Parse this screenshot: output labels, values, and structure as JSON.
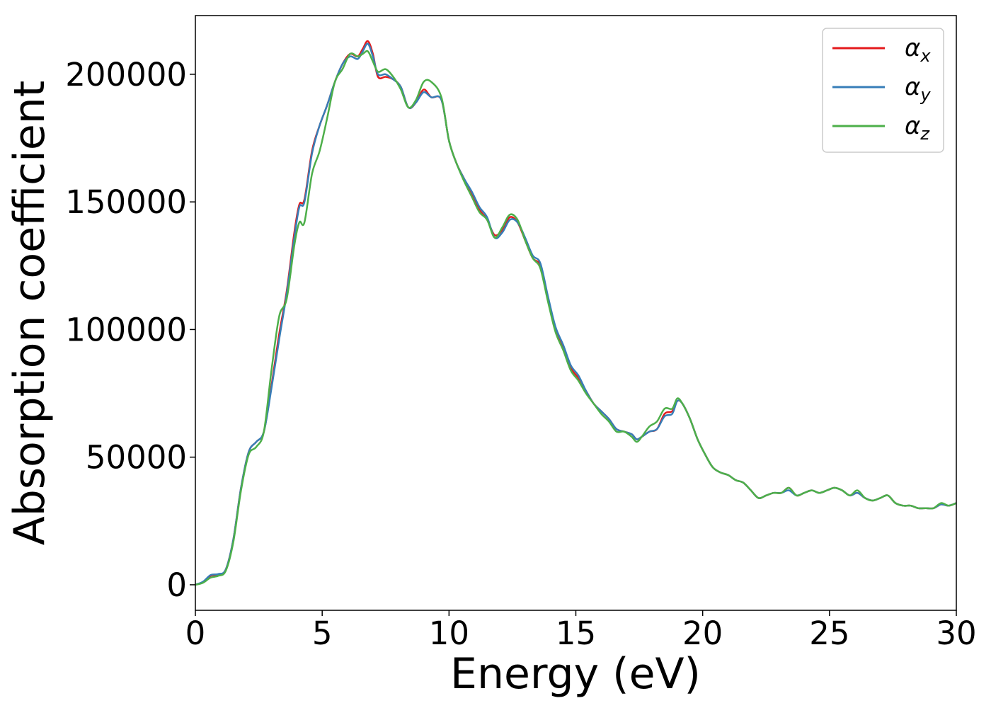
{
  "chart_data": {
    "type": "line",
    "xlabel": "Energy (eV)",
    "ylabel": "Absorption coefficient",
    "xlim": [
      0,
      30
    ],
    "ylim": [
      -10000,
      223000
    ],
    "xticks": [
      0,
      5,
      10,
      15,
      20,
      25,
      30
    ],
    "xtick_labels": [
      "0",
      "5",
      "10",
      "15",
      "20",
      "25",
      "30"
    ],
    "yticks": [
      0,
      50000,
      100000,
      150000,
      200000
    ],
    "ytick_labels": [
      "0",
      "50000",
      "100000",
      "150000",
      "200000"
    ],
    "grid": false,
    "legend_position": "top-right",
    "series": [
      {
        "name": "αx",
        "legend_symbol": "α",
        "legend_sub": "x",
        "color": "#e41a1c",
        "x": [
          0,
          0.3,
          0.6,
          0.9,
          1.2,
          1.5,
          1.8,
          2.1,
          2.4,
          2.7,
          3.0,
          3.3,
          3.6,
          3.9,
          4.1,
          4.3,
          4.6,
          4.9,
          5.2,
          5.5,
          5.8,
          6.1,
          6.4,
          6.6,
          6.8,
          7.0,
          7.2,
          7.5,
          7.8,
          8.1,
          8.4,
          8.7,
          9.0,
          9.3,
          9.7,
          10.0,
          10.3,
          10.6,
          10.9,
          11.2,
          11.5,
          11.8,
          12.1,
          12.4,
          12.7,
          13.0,
          13.3,
          13.6,
          13.9,
          14.2,
          14.5,
          14.8,
          15.1,
          15.4,
          15.7,
          16.0,
          16.3,
          16.6,
          16.9,
          17.2,
          17.4,
          17.6,
          17.9,
          18.2,
          18.5,
          18.8,
          19.0,
          19.2,
          19.5,
          19.8,
          20.1,
          20.4,
          20.7,
          21.0,
          21.3,
          21.6,
          21.9,
          22.2,
          22.5,
          22.8,
          23.1,
          23.4,
          23.7,
          24.0,
          24.3,
          24.6,
          24.9,
          25.2,
          25.5,
          25.8,
          26.1,
          26.4,
          26.7,
          27.0,
          27.3,
          27.6,
          27.9,
          28.2,
          28.5,
          28.8,
          29.1,
          29.4,
          29.7,
          30.0
        ],
        "y": [
          0,
          1000,
          3500,
          4000,
          6000,
          18000,
          38000,
          52000,
          56000,
          60000,
          78000,
          98000,
          115000,
          138000,
          149000,
          151000,
          170000,
          180000,
          188000,
          197000,
          204000,
          208000,
          207000,
          210000,
          213000,
          208000,
          199000,
          199000,
          198000,
          195000,
          187000,
          189000,
          194000,
          191000,
          190000,
          174000,
          165000,
          159000,
          153000,
          147000,
          143000,
          137000,
          139000,
          144000,
          142000,
          135000,
          128000,
          125000,
          112000,
          100000,
          93000,
          85000,
          81000,
          76000,
          71000,
          68000,
          65000,
          61000,
          60000,
          59000,
          57000,
          58000,
          60000,
          61000,
          67000,
          68000,
          72000,
          71000,
          65000,
          57000,
          51000,
          46000,
          44000,
          43000,
          41000,
          40000,
          37000,
          34000,
          35000,
          36000,
          36000,
          38000,
          35000,
          36000,
          37000,
          36000,
          37000,
          38000,
          37000,
          35000,
          36000,
          34000,
          33000,
          34000,
          35000,
          32000,
          31000,
          31000,
          30000,
          30000,
          30000,
          31500,
          31000,
          32000
        ]
      },
      {
        "name": "αy",
        "legend_symbol": "α",
        "legend_sub": "y",
        "color": "#377eb8",
        "x": [
          0,
          0.3,
          0.6,
          0.9,
          1.2,
          1.5,
          1.8,
          2.1,
          2.4,
          2.7,
          3.0,
          3.3,
          3.6,
          3.9,
          4.1,
          4.3,
          4.6,
          4.9,
          5.2,
          5.5,
          5.8,
          6.1,
          6.4,
          6.6,
          6.8,
          7.0,
          7.2,
          7.5,
          7.8,
          8.1,
          8.4,
          8.7,
          9.0,
          9.3,
          9.7,
          10.0,
          10.3,
          10.6,
          10.9,
          11.2,
          11.5,
          11.8,
          12.1,
          12.4,
          12.7,
          13.0,
          13.3,
          13.6,
          13.9,
          14.2,
          14.5,
          14.8,
          15.1,
          15.4,
          15.7,
          16.0,
          16.3,
          16.6,
          16.9,
          17.2,
          17.4,
          17.6,
          17.9,
          18.2,
          18.5,
          18.8,
          19.0,
          19.2,
          19.5,
          19.8,
          20.1,
          20.4,
          20.7,
          21.0,
          21.3,
          21.6,
          21.9,
          22.2,
          22.5,
          22.8,
          23.1,
          23.4,
          23.7,
          24.0,
          24.3,
          24.6,
          24.9,
          25.2,
          25.5,
          25.8,
          26.1,
          26.4,
          26.7,
          27.0,
          27.3,
          27.6,
          27.9,
          28.2,
          28.5,
          28.8,
          29.1,
          29.4,
          29.7,
          30.0
        ],
        "y": [
          0,
          1200,
          3800,
          4200,
          6000,
          18000,
          38000,
          52000,
          56000,
          60000,
          77000,
          96000,
          114000,
          136000,
          148000,
          150000,
          169000,
          180000,
          188000,
          197000,
          204000,
          207000,
          206000,
          209000,
          212000,
          207000,
          200000,
          200000,
          198000,
          195000,
          187000,
          189000,
          193000,
          191000,
          190000,
          174000,
          165000,
          159000,
          154000,
          148000,
          144000,
          136000,
          138000,
          143000,
          142000,
          136000,
          129000,
          126000,
          113000,
          101000,
          94000,
          86000,
          82000,
          76000,
          71000,
          68000,
          65000,
          61000,
          60000,
          59000,
          57000,
          58000,
          60000,
          61000,
          66000,
          67000,
          72000,
          71000,
          65000,
          57000,
          51000,
          46000,
          44000,
          43000,
          41000,
          40000,
          37000,
          34000,
          35000,
          36000,
          36000,
          37000,
          35000,
          36000,
          37000,
          36000,
          37000,
          38000,
          37000,
          35000,
          36000,
          34000,
          33000,
          34000,
          35000,
          32000,
          31000,
          31000,
          30000,
          30000,
          30000,
          31500,
          31000,
          32000
        ]
      },
      {
        "name": "αz",
        "legend_symbol": "α",
        "legend_sub": "z",
        "color": "#4daf4a",
        "x": [
          0,
          0.3,
          0.6,
          0.9,
          1.2,
          1.5,
          1.8,
          2.1,
          2.4,
          2.7,
          3.0,
          3.3,
          3.6,
          3.9,
          4.1,
          4.3,
          4.6,
          4.9,
          5.2,
          5.5,
          5.8,
          6.1,
          6.4,
          6.6,
          6.8,
          7.0,
          7.2,
          7.5,
          7.8,
          8.1,
          8.4,
          8.7,
          9.0,
          9.3,
          9.7,
          10.0,
          10.3,
          10.6,
          10.9,
          11.2,
          11.5,
          11.8,
          12.1,
          12.4,
          12.7,
          13.0,
          13.3,
          13.6,
          13.9,
          14.2,
          14.5,
          14.8,
          15.1,
          15.4,
          15.7,
          16.0,
          16.3,
          16.6,
          16.9,
          17.2,
          17.4,
          17.6,
          17.9,
          18.2,
          18.5,
          18.8,
          19.0,
          19.2,
          19.5,
          19.8,
          20.1,
          20.4,
          20.7,
          21.0,
          21.3,
          21.6,
          21.9,
          22.2,
          22.5,
          22.8,
          23.1,
          23.4,
          23.7,
          24.0,
          24.3,
          24.6,
          24.9,
          25.2,
          25.5,
          25.8,
          26.1,
          26.4,
          26.7,
          27.0,
          27.3,
          27.6,
          27.9,
          28.2,
          28.5,
          28.8,
          29.1,
          29.4,
          29.7,
          30.0
        ],
        "y": [
          0,
          800,
          2800,
          3500,
          5500,
          17000,
          37000,
          51000,
          54000,
          60000,
          84000,
          105000,
          112000,
          133000,
          142000,
          142000,
          161000,
          170000,
          183000,
          197000,
          202000,
          208000,
          207000,
          208000,
          209000,
          205000,
          201000,
          202000,
          199000,
          194000,
          187000,
          190000,
          197000,
          197000,
          191000,
          174000,
          165000,
          158000,
          152000,
          146000,
          143000,
          136000,
          140000,
          145000,
          143000,
          135000,
          128000,
          124000,
          111000,
          99000,
          92000,
          84000,
          80000,
          75000,
          71000,
          67000,
          64000,
          60000,
          60000,
          58000,
          56000,
          58000,
          62000,
          64000,
          69000,
          69000,
          73000,
          71000,
          65000,
          57000,
          51000,
          46000,
          44000,
          43000,
          41000,
          40000,
          37000,
          34000,
          35000,
          36000,
          36000,
          38000,
          35000,
          36000,
          37000,
          36000,
          37000,
          38000,
          37000,
          35000,
          37000,
          34000,
          33000,
          34000,
          35000,
          32000,
          31000,
          31000,
          30000,
          30000,
          30000,
          32000,
          31000,
          32000
        ]
      }
    ]
  }
}
